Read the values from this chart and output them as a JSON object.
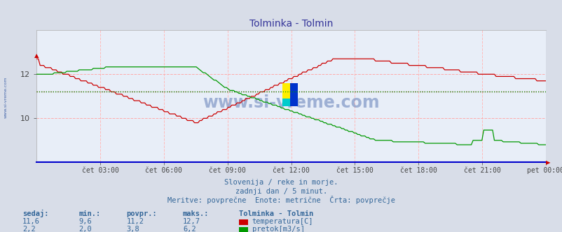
{
  "title": "Tolminka - Tolmin",
  "bg_color": "#d8dde8",
  "plot_bg_color": "#e8eef8",
  "x_labels": [
    "čet 03:00",
    "čet 06:00",
    "čet 09:00",
    "čet 12:00",
    "čet 15:00",
    "čet 18:00",
    "čet 21:00",
    "pet 00:00"
  ],
  "x_ticks": [
    3,
    6,
    9,
    12,
    15,
    18,
    21,
    24
  ],
  "temp_color": "#cc0000",
  "flow_color": "#009900",
  "temp_avg": 11.2,
  "flow_avg": 3.8,
  "temp_min": 9.6,
  "temp_max": 12.7,
  "flow_min": 2.0,
  "flow_max": 6.2,
  "temp_current": 11.6,
  "flow_current": 2.2,
  "subtitle1": "Slovenija / reke in morje.",
  "subtitle2": "zadnji dan / 5 minut.",
  "subtitle3": "Meritve: povprečne  Enote: metrične  Črta: povprečje",
  "watermark": "www.si-vreme.com",
  "watermark_color": "#4466aa",
  "side_text": "www.si-vreme.com",
  "temp_ylim": [
    8.0,
    14.0
  ],
  "flow_ylim": [
    -1.0,
    8.0
  ],
  "xlim": [
    0,
    24
  ],
  "temp_yticks": [
    10,
    12
  ],
  "hgrid_color": "#ffaaaa",
  "vgrid_color": "#ffbbbb"
}
